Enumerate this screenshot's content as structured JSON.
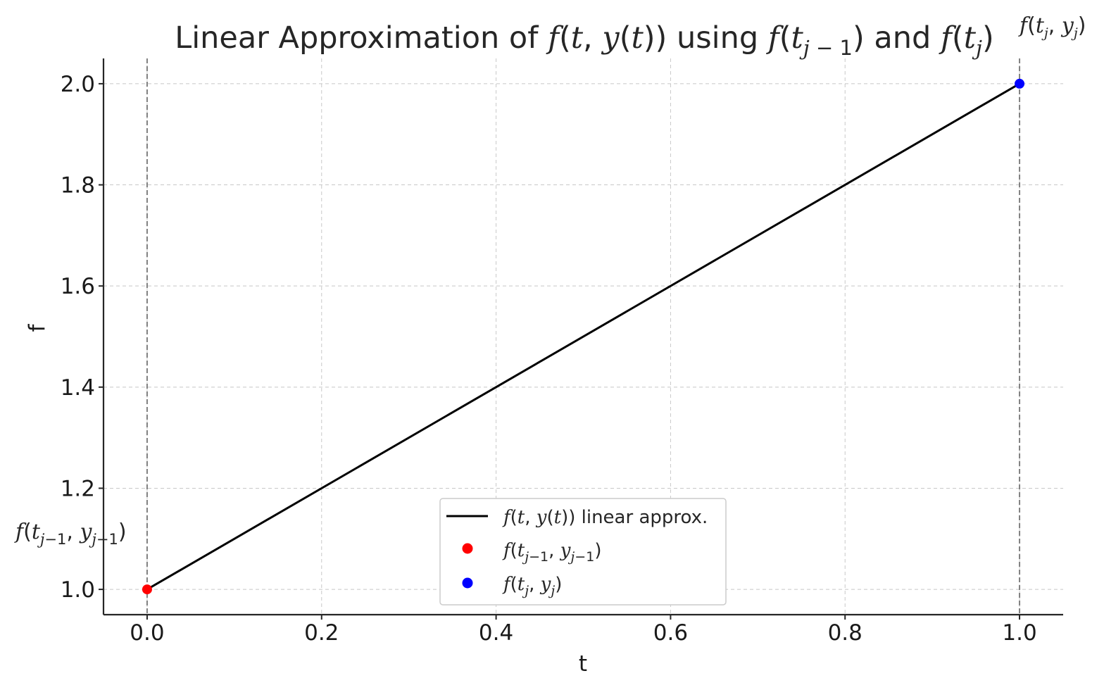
{
  "chart_data": {
    "type": "line",
    "title": "Linear Approximation of f(t, y(t)) using f(t_{j-1}) and f(t_j)",
    "xlabel": "t",
    "ylabel": "f",
    "xlim": [
      -0.05,
      1.05
    ],
    "ylim": [
      0.95,
      2.05
    ],
    "xticks": [
      "0.0",
      "0.2",
      "0.4",
      "0.6",
      "0.8",
      "1.0"
    ],
    "yticks": [
      "1.0",
      "1.2",
      "1.4",
      "1.6",
      "1.8",
      "2.0"
    ],
    "grid": true,
    "legend_position": "bottom-center",
    "series": [
      {
        "name": "f(t, y(t)) linear approx.",
        "kind": "line",
        "color": "#000000",
        "x": [
          0.0,
          1.0
        ],
        "y": [
          1.0,
          2.0
        ]
      },
      {
        "name": "f(t_{j-1}, y_{j-1})",
        "kind": "point",
        "color": "#ff0000",
        "x": [
          0.0
        ],
        "y": [
          1.0
        ]
      },
      {
        "name": "f(t_j, y_j)",
        "kind": "point",
        "color": "#0000ff",
        "x": [
          1.0
        ],
        "y": [
          2.0
        ]
      }
    ],
    "vlines": [
      {
        "x": 0.0,
        "color": "#808080",
        "style": "dashed"
      },
      {
        "x": 1.0,
        "color": "#808080",
        "style": "dashed"
      }
    ],
    "annotations": [
      {
        "text": "f(t_{j-1}, y_{j-1})",
        "x": 0.0,
        "y": 1.0
      },
      {
        "text": "f(t_j, y_j)",
        "x": 1.0,
        "y": 2.0
      }
    ]
  }
}
